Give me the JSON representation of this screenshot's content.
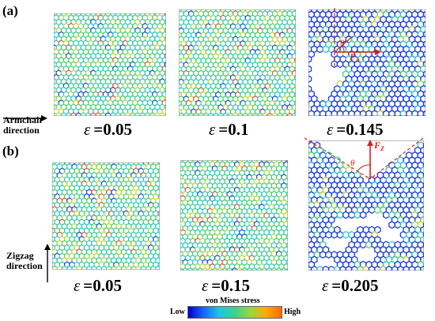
{
  "panels": {
    "a_label": "(a)",
    "b_label": "(b)"
  },
  "epsilon_symbol": "ε",
  "row_a": [
    {
      "strain": "=0.05"
    },
    {
      "strain": "=0.1"
    },
    {
      "strain": "=0.145"
    }
  ],
  "row_b": [
    {
      "strain": "=0.05"
    },
    {
      "strain": "=0.15"
    },
    {
      "strain": "=0.205"
    }
  ],
  "directions": {
    "armchair_line1": "Armchair",
    "armchair_line2": "direction",
    "zigzag_line1": "Zigzag",
    "zigzag_line2": "direction"
  },
  "force_annotations": {
    "theta": "θ",
    "fa": "F",
    "fa_sub": "A",
    "fz": "F",
    "fz_sub": "Z"
  },
  "colorbar": {
    "title": "von Mises stress",
    "low": "Low",
    "high": "High",
    "colors": [
      "#0000cc",
      "#1a64ff",
      "#17c8e6",
      "#3fd08c",
      "#9ad83c",
      "#ffaa00",
      "#ff6a00"
    ]
  },
  "colors": {
    "lattice_low": "#1f3fd8",
    "lattice_mid": "#2fc8c8",
    "lattice_green": "#4fd070",
    "lattice_yellow": "#c8d83a",
    "lattice_red": "#e8503a",
    "annotation_red": "#d81e1e"
  }
}
